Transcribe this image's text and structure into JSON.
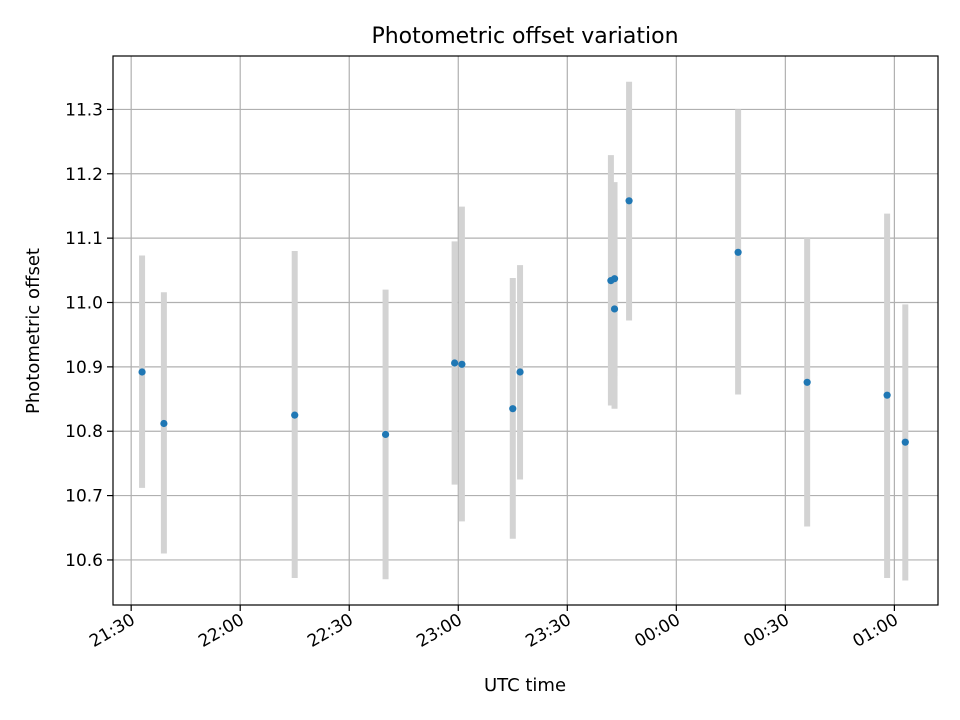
{
  "chart_data": {
    "type": "scatter",
    "title": "Photometric offset variation",
    "xlabel": "UTC time",
    "ylabel": "Photometric offset",
    "grid": true,
    "x_axis": {
      "unit": "time",
      "range": [
        "21:25",
        "01:12"
      ],
      "ticks": [
        "21:30",
        "22:00",
        "22:30",
        "23:00",
        "23:30",
        "00:00",
        "00:30",
        "01:00"
      ]
    },
    "y_axis": {
      "range": [
        10.53,
        11.383
      ],
      "ticks": [
        10.6,
        10.7,
        10.8,
        10.9,
        11.0,
        11.1,
        11.2,
        11.3
      ]
    },
    "errorbar_color": "#d3d3d3",
    "point_color": "#1f77b4",
    "points": [
      {
        "time": "21:33",
        "y": 10.892,
        "ylow": 10.712,
        "yhigh": 11.073
      },
      {
        "time": "21:39",
        "y": 10.812,
        "ylow": 10.61,
        "yhigh": 11.016
      },
      {
        "time": "22:15",
        "y": 10.825,
        "ylow": 10.572,
        "yhigh": 11.08
      },
      {
        "time": "22:40",
        "y": 10.795,
        "ylow": 10.57,
        "yhigh": 11.02
      },
      {
        "time": "22:59",
        "y": 10.906,
        "ylow": 10.717,
        "yhigh": 11.095
      },
      {
        "time": "23:01",
        "y": 10.904,
        "ylow": 10.66,
        "yhigh": 11.149
      },
      {
        "time": "23:15",
        "y": 10.835,
        "ylow": 10.633,
        "yhigh": 11.038
      },
      {
        "time": "23:17",
        "y": 10.892,
        "ylow": 10.725,
        "yhigh": 11.058
      },
      {
        "time": "23:42",
        "y": 11.034,
        "ylow": 10.84,
        "yhigh": 11.229
      },
      {
        "time": "23:43",
        "y": 11.037,
        "ylow": 10.886,
        "yhigh": 11.187
      },
      {
        "time": "23:43",
        "y": 10.99,
        "ylow": 10.835,
        "yhigh": 11.145
      },
      {
        "time": "23:47",
        "y": 11.158,
        "ylow": 10.972,
        "yhigh": 11.343
      },
      {
        "time": "00:17",
        "y": 11.078,
        "ylow": 10.857,
        "yhigh": 11.3
      },
      {
        "time": "00:36",
        "y": 10.876,
        "ylow": 10.652,
        "yhigh": 11.1
      },
      {
        "time": "00:58",
        "y": 10.856,
        "ylow": 10.572,
        "yhigh": 11.138
      },
      {
        "time": "01:03",
        "y": 10.783,
        "ylow": 10.568,
        "yhigh": 10.997
      }
    ]
  }
}
